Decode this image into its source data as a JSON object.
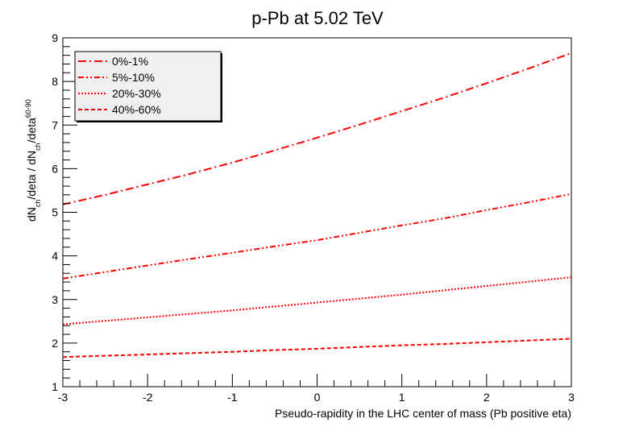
{
  "chart_data": {
    "type": "line",
    "title": "p-Pb at 5.02 TeV",
    "xlabel": "Pseudo-rapidity in the LHC center of mass (Pb positive eta)",
    "ylabel": {
      "parts": [
        "dN",
        "ch",
        "/deta / dN",
        "ch",
        "/deta",
        "60-90"
      ]
    },
    "xlim": [
      -3,
      3
    ],
    "ylim": [
      1,
      9
    ],
    "x_ticks": [
      -3,
      -2,
      -1,
      0,
      1,
      2,
      3
    ],
    "y_ticks": [
      1,
      2,
      3,
      4,
      5,
      6,
      7,
      8,
      9
    ],
    "grid": false,
    "legend_position": "top-left",
    "color": "#ff0000",
    "x": [
      -3,
      -2.5,
      -2,
      -1.5,
      -1,
      -0.5,
      0,
      0.5,
      1,
      1.5,
      2,
      2.5,
      3
    ],
    "series": [
      {
        "name": "0%-1%",
        "dash": "dash-dot",
        "values": [
          5.18,
          5.4,
          5.64,
          5.88,
          6.14,
          6.42,
          6.71,
          7.01,
          7.32,
          7.63,
          7.96,
          8.3,
          8.65
        ]
      },
      {
        "name": "5%-10%",
        "dash": "dash-dot-dot",
        "values": [
          3.48,
          3.63,
          3.78,
          3.93,
          4.07,
          4.22,
          4.36,
          4.53,
          4.7,
          4.86,
          5.05,
          5.23,
          5.42
        ]
      },
      {
        "name": "20%-30%",
        "dash": "dotted",
        "values": [
          2.43,
          2.51,
          2.59,
          2.67,
          2.75,
          2.84,
          2.93,
          3.02,
          3.11,
          3.21,
          3.31,
          3.41,
          3.51
        ]
      },
      {
        "name": "40%-60%",
        "dash": "dashed",
        "values": [
          1.68,
          1.71,
          1.74,
          1.77,
          1.8,
          1.84,
          1.87,
          1.91,
          1.95,
          1.98,
          2.02,
          2.06,
          2.1
        ]
      }
    ]
  }
}
